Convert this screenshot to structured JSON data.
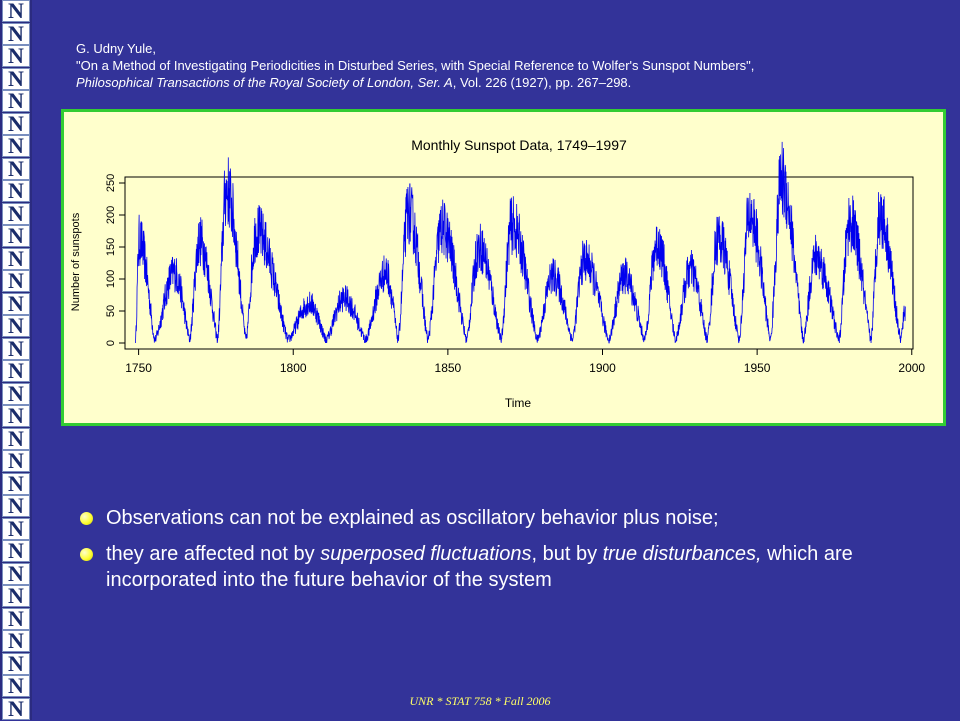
{
  "logo": {
    "letter": "N",
    "count": 32
  },
  "citation": {
    "author": "G. Udny Yule,",
    "title": "\"On a Method of Investigating Periodicities in Disturbed Series, with Special Reference to Wolfer's Sunspot Numbers\",",
    "journal_italic": "Philosophical Transactions of the Royal Society of London, Ser. A",
    "journal_rest": ", Vol. 226 (1927), pp. 267–298."
  },
  "chart_data": {
    "type": "line",
    "title": "Monthly Sunspot Data, 1749–1997",
    "xlabel": "Time",
    "ylabel": "Number of sunspots",
    "xlim": [
      1749,
      1997
    ],
    "ylim": [
      0,
      260
    ],
    "x_ticks": [
      1750,
      1800,
      1850,
      1900,
      1950,
      2000
    ],
    "y_ticks": [
      0,
      50,
      100,
      150,
      200,
      250
    ],
    "grid": false,
    "series_color": "#0000ee",
    "cycles": [
      {
        "min": 1749.0,
        "max": 1750.2,
        "peak": 160
      },
      {
        "min": 1755.2,
        "max": 1761.5,
        "peak": 110
      },
      {
        "min": 1766.5,
        "max": 1769.7,
        "peak": 160
      },
      {
        "min": 1775.5,
        "max": 1778.4,
        "peak": 240
      },
      {
        "min": 1784.7,
        "max": 1788.1,
        "peak": 175
      },
      {
        "min": 1798.3,
        "max": 1805.2,
        "peak": 62
      },
      {
        "min": 1810.6,
        "max": 1816.4,
        "peak": 70
      },
      {
        "min": 1823.3,
        "max": 1829.9,
        "peak": 110
      },
      {
        "min": 1833.9,
        "max": 1837.2,
        "peak": 205
      },
      {
        "min": 1843.5,
        "max": 1848.1,
        "peak": 180
      },
      {
        "min": 1856.0,
        "max": 1860.1,
        "peak": 150
      },
      {
        "min": 1867.2,
        "max": 1870.6,
        "peak": 185
      },
      {
        "min": 1878.9,
        "max": 1883.9,
        "peak": 105
      },
      {
        "min": 1890.2,
        "max": 1894.1,
        "peak": 130
      },
      {
        "min": 1902.0,
        "max": 1907.0,
        "peak": 105
      },
      {
        "min": 1913.6,
        "max": 1917.6,
        "peak": 155
      },
      {
        "min": 1923.6,
        "max": 1928.4,
        "peak": 115
      },
      {
        "min": 1933.8,
        "max": 1937.4,
        "peak": 165
      },
      {
        "min": 1944.2,
        "max": 1947.5,
        "peak": 200
      },
      {
        "min": 1954.3,
        "max": 1957.9,
        "peak": 255
      },
      {
        "min": 1964.9,
        "max": 1968.9,
        "peak": 135
      },
      {
        "min": 1976.5,
        "max": 1979.9,
        "peak": 190
      },
      {
        "min": 1986.8,
        "max": 1989.6,
        "peak": 200
      },
      {
        "min": 1996.4,
        "max": 1997.9,
        "peak": 50
      }
    ]
  },
  "bullets": [
    {
      "text": "Observations can not be explained as oscillatory behavior plus noise;"
    },
    {
      "p1": "they are affected not by ",
      "i1": "superposed fluctuations",
      "p2": ", but by ",
      "i2": "true disturbances,",
      "p3": " which are incorporated into the future behavior of the system"
    }
  ],
  "footer": "UNR * STAT 758 * Fall 2006"
}
